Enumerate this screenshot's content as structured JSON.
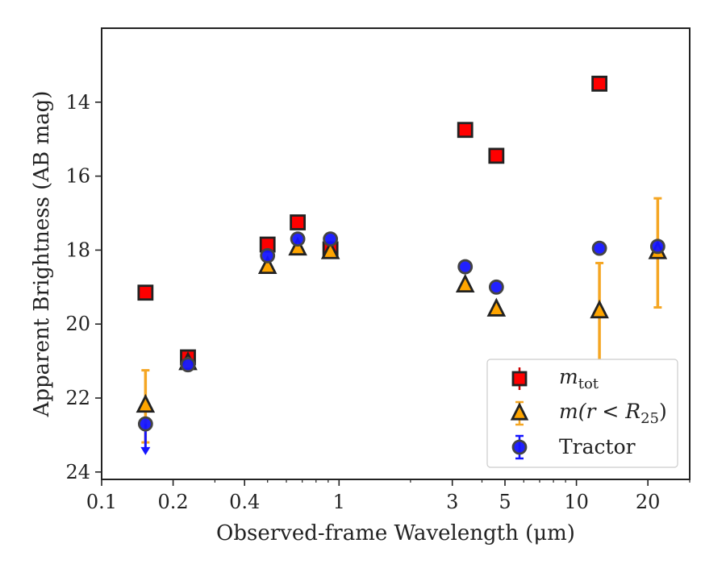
{
  "chart_data": {
    "type": "scatter",
    "xlabel": "Observed-frame Wavelength (μm)",
    "ylabel": "Apparent Brightness (AB mag)",
    "xscale": "log",
    "xlim": [
      0.1,
      30
    ],
    "ylim": [
      24.2,
      12.0
    ],
    "y_inverted": true,
    "xticks": [
      0.1,
      0.2,
      0.4,
      1,
      3,
      5,
      10,
      20
    ],
    "xtick_labels": [
      "0.1",
      "0.2",
      "0.4",
      "1",
      "3",
      "5",
      "10",
      "20"
    ],
    "yticks": [
      14,
      16,
      18,
      20,
      22,
      24
    ],
    "ytick_labels": [
      "14",
      "16",
      "18",
      "20",
      "22",
      "24"
    ],
    "legend_position": "lower-right",
    "series": [
      {
        "name": "m_tot",
        "marker": "square",
        "color": "#ff0000",
        "edgecolor": "#222222",
        "points": [
          {
            "x": 0.153,
            "y": 19.15
          },
          {
            "x": 0.231,
            "y": 20.9
          },
          {
            "x": 0.5,
            "y": 17.85
          },
          {
            "x": 0.67,
            "y": 17.25
          },
          {
            "x": 0.92,
            "y": 17.98
          },
          {
            "x": 3.4,
            "y": 14.75
          },
          {
            "x": 4.6,
            "y": 15.45
          },
          {
            "x": 12.5,
            "y": 13.5
          }
        ]
      },
      {
        "name": "m(r<R25)",
        "marker": "triangle",
        "color": "#ffa500",
        "edgecolor": "#222222",
        "errorbar_color": "#f5a623",
        "points": [
          {
            "x": 0.153,
            "y": 22.2,
            "yerr_low": 21.25,
            "yerr_high": 23.2
          },
          {
            "x": 0.231,
            "y": 21.05
          },
          {
            "x": 0.5,
            "y": 18.45
          },
          {
            "x": 0.67,
            "y": 17.95
          },
          {
            "x": 0.92,
            "y": 18.05
          },
          {
            "x": 3.4,
            "y": 18.95
          },
          {
            "x": 4.6,
            "y": 19.6
          },
          {
            "x": 12.5,
            "y": 19.65,
            "yerr_low": 18.35,
            "yerr_high": 21.1
          },
          {
            "x": 22,
            "y": 18.05,
            "yerr_low": 16.6,
            "yerr_high": 19.55
          }
        ]
      },
      {
        "name": "Tractor",
        "marker": "circle",
        "color": "#1515ff",
        "edgecolor": "#444444",
        "points": [
          {
            "x": 0.153,
            "y": 22.7,
            "upper_limit": true,
            "arrow_to": 23.5
          },
          {
            "x": 0.231,
            "y": 21.1
          },
          {
            "x": 0.5,
            "y": 18.15
          },
          {
            "x": 0.67,
            "y": 17.7
          },
          {
            "x": 0.92,
            "y": 17.7
          },
          {
            "x": 3.4,
            "y": 18.45
          },
          {
            "x": 4.6,
            "y": 19.0
          },
          {
            "x": 12.5,
            "y": 17.95
          },
          {
            "x": 22,
            "y": 17.9
          }
        ]
      }
    ]
  },
  "legend": {
    "tot_main": "m",
    "tot_sub": "tot",
    "r25_main": "m(r < R",
    "r25_sub": "25",
    "r25_close": ")",
    "tractor": "Tractor"
  }
}
